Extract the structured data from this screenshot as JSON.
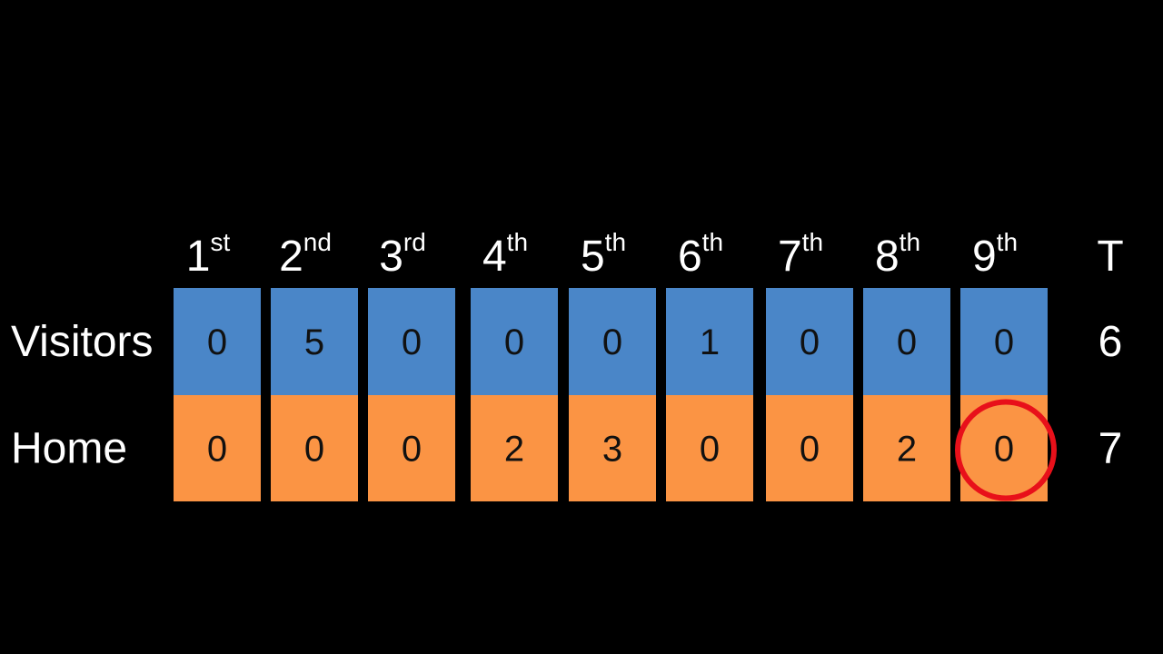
{
  "table": {
    "header": [
      {
        "num": "1",
        "suffix": "st"
      },
      {
        "num": "2",
        "suffix": "nd"
      },
      {
        "num": "3",
        "suffix": "rd"
      },
      {
        "num": "4",
        "suffix": "th"
      },
      {
        "num": "5",
        "suffix": "th"
      },
      {
        "num": "6",
        "suffix": "th"
      },
      {
        "num": "7",
        "suffix": "th"
      },
      {
        "num": "8",
        "suffix": "th"
      },
      {
        "num": "9",
        "suffix": "th"
      }
    ],
    "total_header": "T",
    "rows": [
      {
        "label": "Visitors",
        "scores": [
          0,
          5,
          0,
          0,
          0,
          1,
          0,
          0,
          0
        ],
        "total": 6,
        "color": "#4a86c8"
      },
      {
        "label": "Home",
        "scores": [
          0,
          0,
          0,
          2,
          3,
          0,
          0,
          2,
          0
        ],
        "total": 7,
        "color": "#fb9444"
      }
    ],
    "highlight": {
      "row": 1,
      "column": 8,
      "color": "#e8101a"
    }
  }
}
